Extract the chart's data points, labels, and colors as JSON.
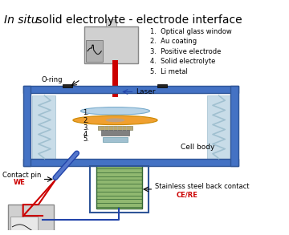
{
  "title_italic": "In situ",
  "title_rest": " solid electrolyte - electrode interface",
  "legend_items": [
    "Optical glass window",
    "Au coating",
    "Positive electrode",
    "Solid electrolyte",
    "Li metal"
  ],
  "labels": {
    "o_ring": "O-ring",
    "laser": "Laser",
    "cell_body": "Cell body",
    "contact_pin": "Contact pin",
    "we": "WE",
    "stainless": "Stainless steel back contact",
    "ce_re": "CE/RE"
  },
  "colors": {
    "background": "#ffffff",
    "cell_body_fill": "#4472c4",
    "cell_body_edge": "#2f5597",
    "glass_window": "#b8d4e8",
    "au_coating": "#f0a030",
    "positive_electrode": "#c8a060",
    "solid_electrolyte": "#808080",
    "li_metal": "#a0c0d0",
    "laser_beam": "#cc0000",
    "spring_color": "#a0c0d0",
    "spring_fill": "#c8dce8",
    "screw_fill": "#90b870",
    "screw_border": "#336633",
    "stainless_fill": "#b0c8e0",
    "stainless_border": "#4472c4",
    "contact_pin_color": "#2244aa",
    "red_wire": "#cc0000",
    "blue_wire": "#2244aa",
    "instrument_fill": "#d0d0d0",
    "instrument_border": "#888888",
    "o_ring_color": "#000000",
    "arrow_color": "#2244aa",
    "label_color": "#000000",
    "we_color": "#cc0000",
    "ce_re_color": "#cc0000",
    "num_label": "#000000"
  }
}
